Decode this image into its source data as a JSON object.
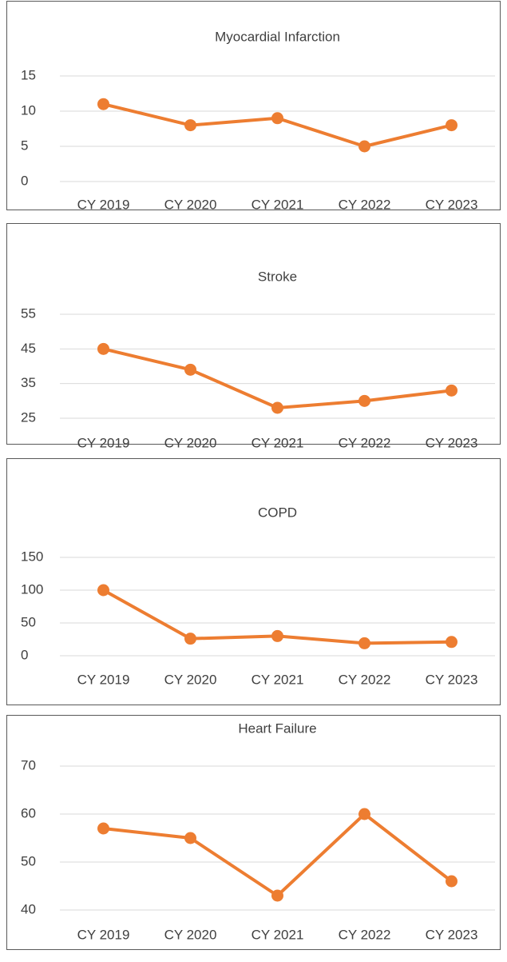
{
  "chart_data": [
    {
      "type": "line",
      "title": "Myocardial Infarction",
      "categories": [
        "CY 2019",
        "CY 2020",
        "CY 2021",
        "CY 2022",
        "CY 2023"
      ],
      "series": [
        {
          "color": "#ed7d31",
          "values": [
            11,
            8,
            9,
            5,
            8
          ]
        }
      ],
      "ylim": [
        0,
        15
      ],
      "yticks": [
        0,
        5,
        10,
        15
      ],
      "grid": true
    },
    {
      "type": "line",
      "title": "Stroke",
      "categories": [
        "CY 2019",
        "CY 2020",
        "CY 2021",
        "CY 2022",
        "CY 2023"
      ],
      "series": [
        {
          "color": "#ed7d31",
          "values": [
            45,
            39,
            28,
            30,
            33
          ]
        }
      ],
      "ylim": [
        25,
        55
      ],
      "yticks": [
        25,
        35,
        45,
        55
      ],
      "grid": true
    },
    {
      "type": "line",
      "title": "COPD",
      "categories": [
        "CY 2019",
        "CY 2020",
        "CY 2021",
        "CY 2022",
        "CY 2023"
      ],
      "series": [
        {
          "color": "#ed7d31",
          "values": [
            100,
            26,
            30,
            19,
            21
          ]
        }
      ],
      "ylim": [
        0,
        150
      ],
      "yticks": [
        0,
        50,
        100,
        150
      ],
      "grid": true
    },
    {
      "type": "line",
      "title": "Heart Failure",
      "categories": [
        "CY 2019",
        "CY 2020",
        "CY 2021",
        "CY 2022",
        "CY 2023"
      ],
      "series": [
        {
          "color": "#ed7d31",
          "values": [
            57,
            55,
            43,
            60,
            46
          ]
        }
      ],
      "ylim": [
        40,
        70
      ],
      "yticks": [
        40,
        50,
        60,
        70
      ],
      "grid": true
    }
  ]
}
